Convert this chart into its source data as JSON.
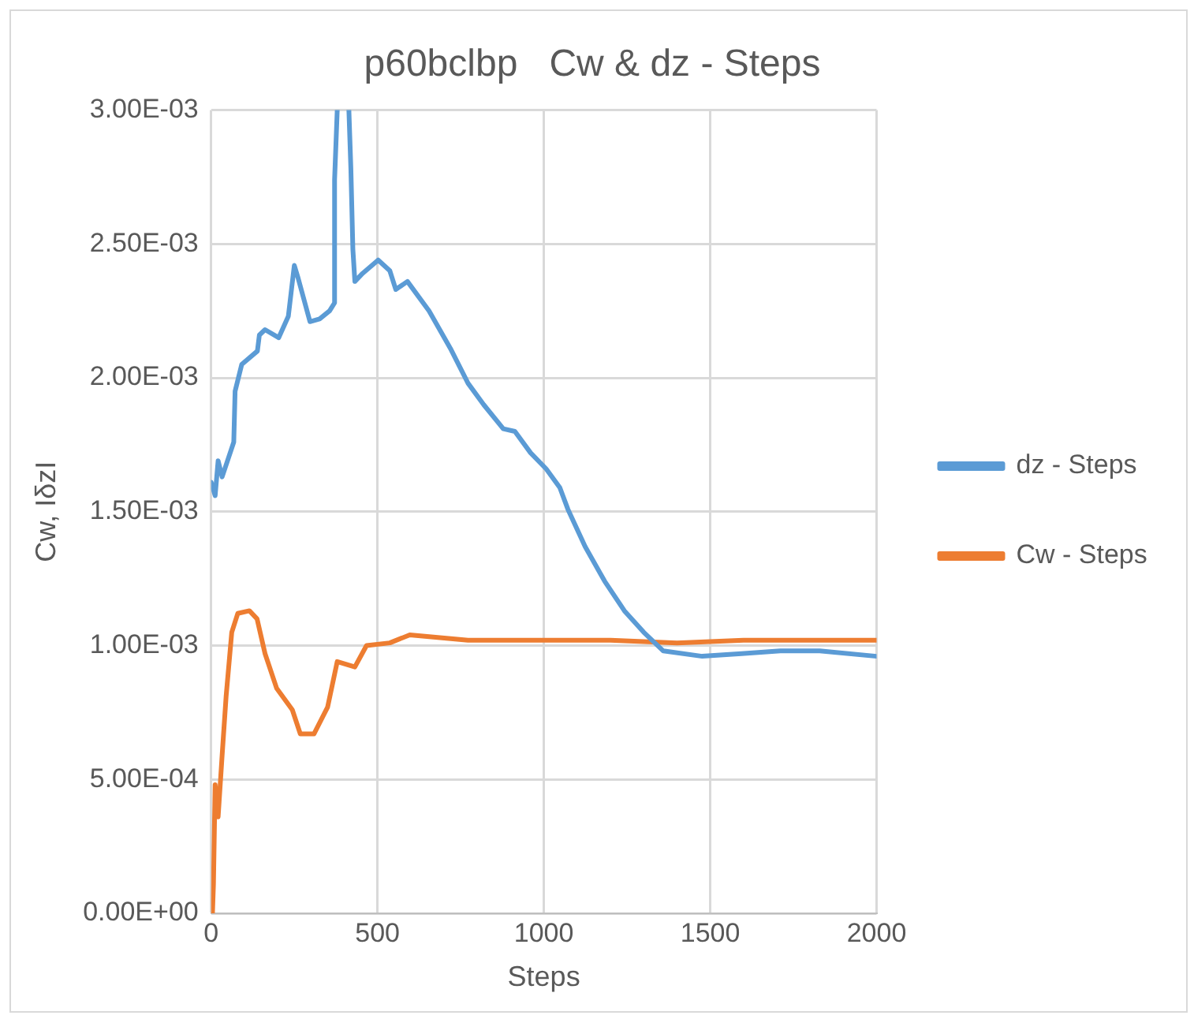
{
  "chart_data": {
    "type": "line",
    "title": "p60bclbp   Cw & dz - Steps",
    "xlabel": "Steps",
    "ylabel": "Cw, IδzI",
    "xlim": [
      0,
      2000
    ],
    "xticks": [
      0,
      500,
      1000,
      1500,
      2000
    ],
    "ylim": [
      0,
      0.003
    ],
    "yticks": [
      {
        "value": 0,
        "label": "0.00E+00"
      },
      {
        "value": 0.0005,
        "label": "5.00E-04"
      },
      {
        "value": 0.001,
        "label": "1.00E-03"
      },
      {
        "value": 0.0015,
        "label": "1.50E-03"
      },
      {
        "value": 0.002,
        "label": "2.00E-03"
      },
      {
        "value": 0.0025,
        "label": "2.50E-03"
      },
      {
        "value": 0.003,
        "label": "3.00E-03"
      }
    ],
    "grid": true,
    "legend": "right",
    "marker": "none",
    "line_style": "solid",
    "series": [
      {
        "name": "dz - Steps",
        "color": "#5b9bd5",
        "x": [
          0,
          12,
          21,
          33,
          68,
          72,
          92,
          139,
          145,
          162,
          203,
          232,
          250,
          262,
          297,
          326,
          356,
          371,
          371,
          379,
          396,
          414,
          420,
          426,
          432,
          455,
          502,
          537,
          555,
          590,
          655,
          719,
          772,
          819,
          878,
          913,
          960,
          1007,
          1048,
          1072,
          1124,
          1183,
          1242,
          1300,
          1359,
          1476,
          1594,
          1711,
          1829,
          2000
        ],
        "values": [
          0.00161,
          0.00156,
          0.00169,
          0.00163,
          0.00176,
          0.00195,
          0.00205,
          0.0021,
          0.00216,
          0.00218,
          0.00215,
          0.00223,
          0.00242,
          0.00237,
          0.00221,
          0.00222,
          0.00225,
          0.00228,
          0.00274,
          0.003,
          null,
          0.003,
          0.00278,
          0.00248,
          0.00236,
          0.00239,
          0.00244,
          0.0024,
          0.00233,
          0.00236,
          0.00225,
          0.00211,
          0.00198,
          0.0019,
          0.00181,
          0.0018,
          0.00172,
          0.00166,
          0.00159,
          0.00151,
          0.00137,
          0.00124,
          0.00113,
          0.00105,
          0.00098,
          0.00096,
          0.00097,
          0.00098,
          0.00098,
          0.00096
        ]
      },
      {
        "name": "Cw - Steps",
        "color": "#ed7d31",
        "x": [
          4,
          7,
          12,
          21,
          33,
          45,
          62,
          80,
          115,
          138,
          162,
          197,
          244,
          268,
          309,
          350,
          379,
          432,
          467,
          537,
          597,
          772,
          1066,
          1200,
          1400,
          1600,
          1800,
          2000
        ],
        "values": [
          0,
          0.00011,
          0.00048,
          0.00036,
          0.00059,
          0.00081,
          0.00105,
          0.00112,
          0.00113,
          0.0011,
          0.00097,
          0.00084,
          0.00076,
          0.00067,
          0.00067,
          0.00077,
          0.00094,
          0.00092,
          0.001,
          0.00101,
          0.00104,
          0.00102,
          0.00102,
          0.00102,
          0.00101,
          0.00102,
          0.00102,
          0.00102
        ]
      }
    ]
  }
}
